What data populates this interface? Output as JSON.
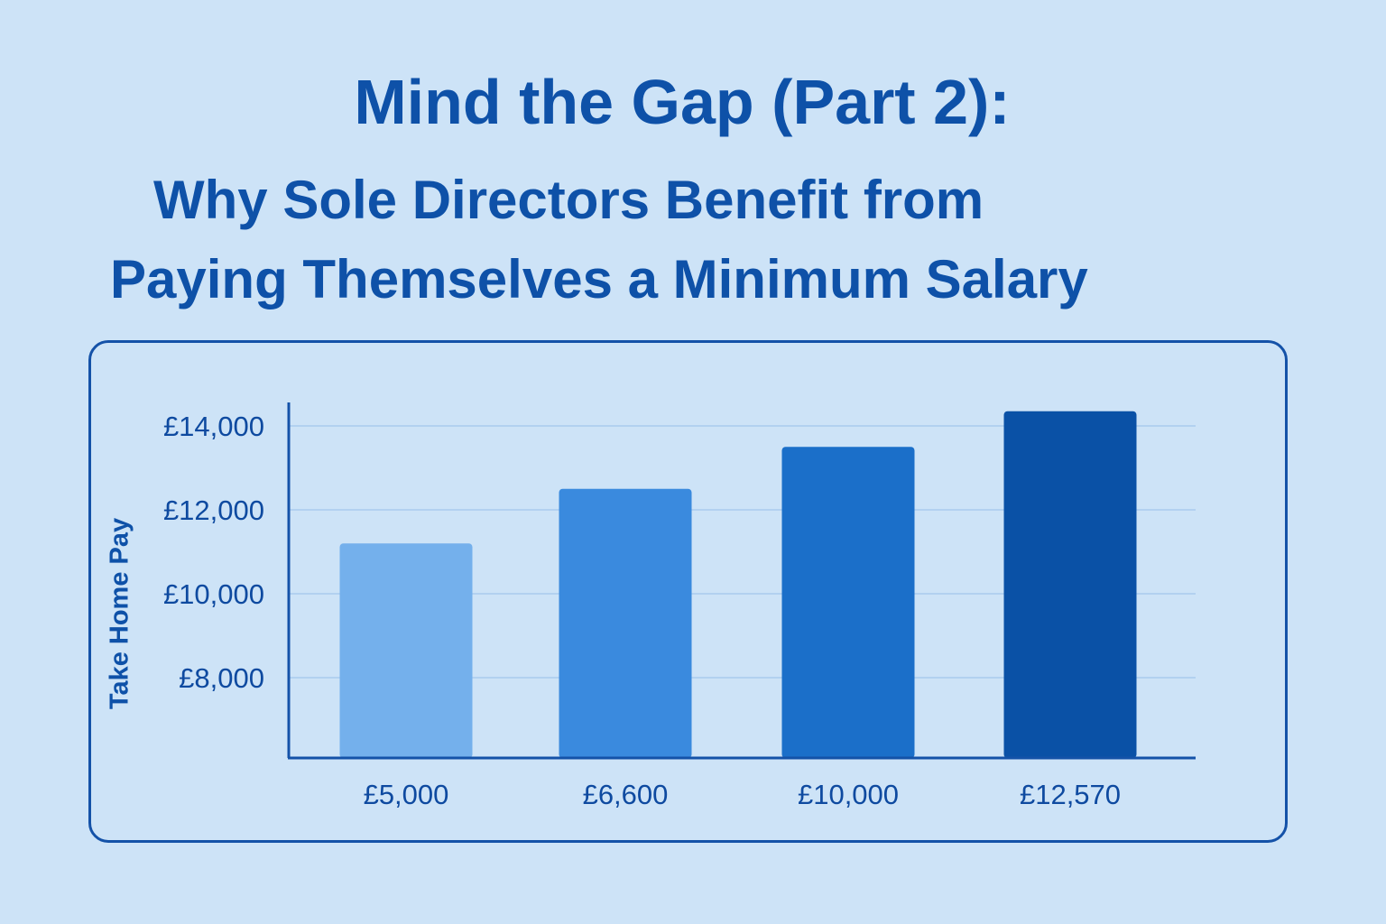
{
  "title": {
    "line1": "Mind the Gap (Part 2):",
    "line2": "Why Sole Directors Benefit from",
    "line3": "Paying Themselves a Minimum Salary"
  },
  "chart_data": {
    "type": "bar",
    "categories": [
      "£5,000",
      "£6,600",
      "£10,000",
      "£12,570"
    ],
    "values": [
      11200,
      12500,
      13500,
      14350
    ],
    "ylabel": "Take Home Pay",
    "xlabel": "",
    "yticks": [
      8000,
      10000,
      12000,
      14000
    ],
    "ytick_labels": [
      "£8,000",
      "£10,000",
      "£12,000",
      "£14,000"
    ],
    "ylim": [
      6000,
      15000
    ],
    "grid": true,
    "bar_colors": [
      "#74b0ec",
      "#3a8ade",
      "#1b6fc9",
      "#0a51a6"
    ],
    "gridline_color": "#a9cbee",
    "axis_color": "#1452a8"
  }
}
